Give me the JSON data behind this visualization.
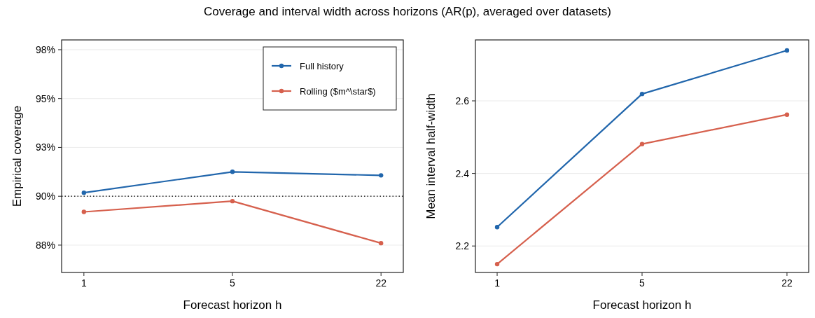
{
  "chart_data": [
    {
      "type": "line",
      "title": "Coverage and interval width across horizons  (AR(p), averaged over datasets)",
      "xlabel": "Forecast horizon h",
      "ylabel": "Empirical coverage",
      "categories": [
        "1",
        "5",
        "22"
      ],
      "series": [
        {
          "name": "Full history",
          "color": "#2166ac",
          "values": [
            90.18,
            91.25,
            91.07
          ]
        },
        {
          "name": "Rolling ($m^\\star$)",
          "color": "#d6604d",
          "values": [
            89.2,
            89.75,
            87.6
          ]
        }
      ],
      "ylim": [
        86.1,
        98.0
      ],
      "yticks": [
        {
          "value": 87.5,
          "label": "88%"
        },
        {
          "value": 90,
          "label": "90%"
        },
        {
          "value": 92.5,
          "label": "93%"
        },
        {
          "value": 95,
          "label": "95%"
        },
        {
          "value": 97.5,
          "label": "98%"
        }
      ],
      "ref_lines": [
        {
          "axis": "y",
          "value": 90,
          "color": "#000000",
          "line_style": "dotted"
        }
      ],
      "grid": "y",
      "legend": "top right",
      "marker": "circle",
      "line_style": "solid"
    },
    {
      "type": "line",
      "xlabel": "Forecast horizon h",
      "ylabel": "Mean interval half-width",
      "categories": [
        "1",
        "5",
        "22"
      ],
      "series": [
        {
          "color": "#2166ac",
          "values": [
            2.252,
            2.619,
            2.739
          ]
        },
        {
          "color": "#d6604d",
          "values": [
            2.15,
            2.481,
            2.562
          ]
        }
      ],
      "ylim": [
        2.127,
        2.768
      ],
      "yticks": [
        {
          "value": 2.2,
          "label": "2.2"
        },
        {
          "value": 2.4,
          "label": "2.4"
        },
        {
          "value": 2.6,
          "label": "2.6"
        }
      ],
      "grid": "y",
      "marker": "circle",
      "line_style": "solid"
    }
  ]
}
